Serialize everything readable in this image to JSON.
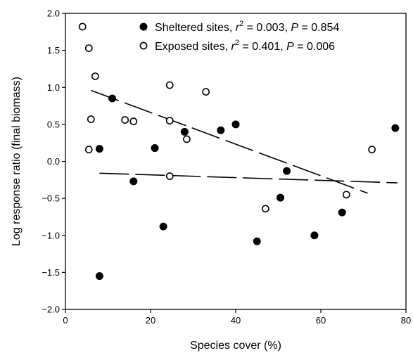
{
  "chart_data": {
    "type": "scatter",
    "xlabel": "Species cover (%)",
    "ylabel": "Log response ratio (final biomass)",
    "xlim": [
      0,
      80
    ],
    "ylim": [
      -2.0,
      2.0
    ],
    "xticks": [
      0,
      20,
      40,
      60,
      80
    ],
    "yticks": [
      -2.0,
      -1.5,
      -1.0,
      -0.5,
      0.0,
      0.5,
      1.0,
      1.5,
      2.0
    ],
    "xtick_labels": [
      "0",
      "20",
      "40",
      "60",
      "80"
    ],
    "ytick_labels": [
      "−2.0",
      "−1.5",
      "−1.0",
      "−0.5",
      "0.0",
      "0.5",
      "1.0",
      "1.5",
      "2.0"
    ],
    "grid": false,
    "legend_position": "top-right",
    "series": [
      {
        "key": "sheltered",
        "name": "Sheltered sites",
        "stat_r2": "0.003",
        "stat_p": "0.854",
        "marker": "filled-circle",
        "color": "#000000",
        "x": [
          8,
          8,
          11,
          16,
          21,
          23,
          28,
          36.5,
          40,
          45,
          50.5,
          52,
          58.5,
          65,
          77.5
        ],
        "y": [
          0.17,
          -1.55,
          0.85,
          -0.27,
          0.18,
          -0.88,
          0.4,
          0.42,
          0.5,
          -1.08,
          -0.49,
          -0.13,
          -1.0,
          -0.69,
          0.45
        ],
        "trend": {
          "x": [
            8,
            78
          ],
          "y": [
            -0.16,
            -0.29
          ]
        }
      },
      {
        "key": "exposed",
        "name": "Exposed sites",
        "stat_r2": "0.401",
        "stat_p": "0.006",
        "marker": "open-circle",
        "color": "#000000",
        "x": [
          4,
          5.5,
          5.5,
          6,
          7,
          14,
          16,
          24.5,
          24.5,
          24.5,
          28.5,
          33,
          47,
          66,
          72
        ],
        "y": [
          1.82,
          1.53,
          0.16,
          0.57,
          1.15,
          0.56,
          0.54,
          1.03,
          0.55,
          -0.2,
          0.3,
          0.94,
          -0.64,
          -0.45,
          0.16
        ],
        "trend": {
          "x": [
            6,
            71
          ],
          "y": [
            0.96,
            -0.43
          ]
        }
      }
    ]
  }
}
